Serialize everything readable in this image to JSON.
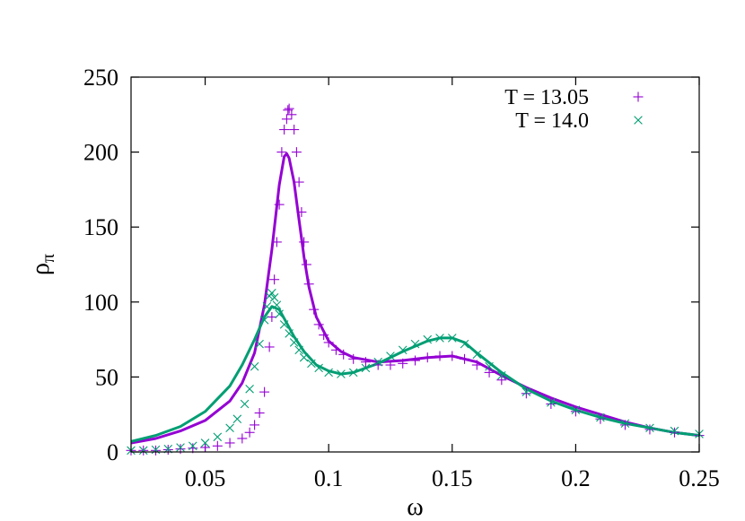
{
  "chart_data": {
    "type": "scatter",
    "xlabel": "ω",
    "ylabel": "ρ",
    "ylabel_sub": "π",
    "xlim": [
      0.02,
      0.25
    ],
    "ylim": [
      0,
      250
    ],
    "xticks": [
      "0.05",
      "0.1",
      "0.15",
      "0.2",
      "0.25"
    ],
    "xtick_values": [
      0.05,
      0.1,
      0.15,
      0.2,
      0.25
    ],
    "yticks": [
      "0",
      "50",
      "100",
      "150",
      "200",
      "250"
    ],
    "ytick_values": [
      0,
      50,
      100,
      150,
      200,
      250
    ],
    "grid": false,
    "legend_position": "top-right",
    "series": [
      {
        "name": "T = 13.05",
        "marker": "plus",
        "color": "#9400d3",
        "points": [
          [
            0.02,
            1
          ],
          [
            0.025,
            1
          ],
          [
            0.03,
            1
          ],
          [
            0.035,
            1.5
          ],
          [
            0.04,
            2
          ],
          [
            0.045,
            2.5
          ],
          [
            0.05,
            3
          ],
          [
            0.055,
            4
          ],
          [
            0.06,
            6
          ],
          [
            0.065,
            9
          ],
          [
            0.068,
            13
          ],
          [
            0.07,
            18
          ],
          [
            0.072,
            26
          ],
          [
            0.074,
            40
          ],
          [
            0.076,
            70
          ],
          [
            0.077,
            90
          ],
          [
            0.078,
            115
          ],
          [
            0.079,
            140
          ],
          [
            0.08,
            165
          ],
          [
            0.081,
            200
          ],
          [
            0.082,
            215
          ],
          [
            0.083,
            222
          ],
          [
            0.0835,
            228
          ],
          [
            0.084,
            229
          ],
          [
            0.085,
            225
          ],
          [
            0.086,
            215
          ],
          [
            0.087,
            200
          ],
          [
            0.088,
            180
          ],
          [
            0.089,
            160
          ],
          [
            0.09,
            140
          ],
          [
            0.091,
            125
          ],
          [
            0.092,
            112
          ],
          [
            0.094,
            95
          ],
          [
            0.096,
            85
          ],
          [
            0.098,
            78
          ],
          [
            0.1,
            73
          ],
          [
            0.103,
            68
          ],
          [
            0.106,
            65
          ],
          [
            0.11,
            62
          ],
          [
            0.115,
            60
          ],
          [
            0.12,
            58
          ],
          [
            0.125,
            58
          ],
          [
            0.13,
            59
          ],
          [
            0.135,
            61
          ],
          [
            0.14,
            63
          ],
          [
            0.145,
            64
          ],
          [
            0.15,
            64
          ],
          [
            0.155,
            62
          ],
          [
            0.16,
            58
          ],
          [
            0.165,
            53
          ],
          [
            0.17,
            48
          ],
          [
            0.18,
            39
          ],
          [
            0.19,
            32
          ],
          [
            0.2,
            27
          ],
          [
            0.21,
            22
          ],
          [
            0.22,
            18
          ],
          [
            0.23,
            15
          ],
          [
            0.24,
            13
          ],
          [
            0.25,
            11
          ]
        ],
        "fit": [
          [
            0.02,
            6
          ],
          [
            0.03,
            9
          ],
          [
            0.04,
            14
          ],
          [
            0.05,
            21
          ],
          [
            0.06,
            34
          ],
          [
            0.065,
            46
          ],
          [
            0.07,
            66
          ],
          [
            0.074,
            98
          ],
          [
            0.077,
            135
          ],
          [
            0.08,
            178
          ],
          [
            0.082,
            197
          ],
          [
            0.083,
            199
          ],
          [
            0.084,
            196
          ],
          [
            0.086,
            180
          ],
          [
            0.088,
            155
          ],
          [
            0.09,
            130
          ],
          [
            0.092,
            110
          ],
          [
            0.095,
            90
          ],
          [
            0.1,
            74
          ],
          [
            0.105,
            67
          ],
          [
            0.11,
            63
          ],
          [
            0.12,
            60
          ],
          [
            0.13,
            61
          ],
          [
            0.14,
            63
          ],
          [
            0.15,
            64
          ],
          [
            0.16,
            60
          ],
          [
            0.17,
            51
          ],
          [
            0.18,
            43
          ],
          [
            0.19,
            36
          ],
          [
            0.2,
            30
          ],
          [
            0.21,
            25
          ],
          [
            0.22,
            20
          ],
          [
            0.23,
            16
          ],
          [
            0.24,
            13
          ],
          [
            0.25,
            11
          ]
        ]
      },
      {
        "name": "T = 14.0",
        "marker": "cross",
        "color": "#009e73",
        "points": [
          [
            0.02,
            1
          ],
          [
            0.025,
            1
          ],
          [
            0.03,
            1.5
          ],
          [
            0.035,
            2
          ],
          [
            0.04,
            3
          ],
          [
            0.045,
            4
          ],
          [
            0.05,
            6
          ],
          [
            0.055,
            10
          ],
          [
            0.06,
            16
          ],
          [
            0.063,
            22
          ],
          [
            0.066,
            32
          ],
          [
            0.068,
            42
          ],
          [
            0.07,
            57
          ],
          [
            0.072,
            72
          ],
          [
            0.074,
            88
          ],
          [
            0.075,
            97
          ],
          [
            0.076,
            104
          ],
          [
            0.077,
            106
          ],
          [
            0.078,
            103
          ],
          [
            0.079,
            98
          ],
          [
            0.08,
            92
          ],
          [
            0.082,
            85
          ],
          [
            0.084,
            79
          ],
          [
            0.086,
            73
          ],
          [
            0.088,
            68
          ],
          [
            0.09,
            63
          ],
          [
            0.093,
            59
          ],
          [
            0.096,
            56
          ],
          [
            0.1,
            53
          ],
          [
            0.105,
            52
          ],
          [
            0.11,
            53
          ],
          [
            0.115,
            56
          ],
          [
            0.12,
            60
          ],
          [
            0.125,
            64
          ],
          [
            0.13,
            68
          ],
          [
            0.135,
            72
          ],
          [
            0.14,
            75
          ],
          [
            0.145,
            76
          ],
          [
            0.15,
            76
          ],
          [
            0.155,
            72
          ],
          [
            0.16,
            65
          ],
          [
            0.165,
            57
          ],
          [
            0.17,
            51
          ],
          [
            0.18,
            40
          ],
          [
            0.19,
            33
          ],
          [
            0.2,
            28
          ],
          [
            0.21,
            23
          ],
          [
            0.22,
            19
          ],
          [
            0.23,
            16
          ],
          [
            0.24,
            14
          ],
          [
            0.25,
            12
          ]
        ],
        "fit": [
          [
            0.02,
            7
          ],
          [
            0.03,
            11
          ],
          [
            0.04,
            17
          ],
          [
            0.05,
            27
          ],
          [
            0.06,
            44
          ],
          [
            0.065,
            58
          ],
          [
            0.07,
            75
          ],
          [
            0.074,
            90
          ],
          [
            0.077,
            97
          ],
          [
            0.08,
            95
          ],
          [
            0.083,
            86
          ],
          [
            0.086,
            77
          ],
          [
            0.09,
            67
          ],
          [
            0.095,
            58
          ],
          [
            0.1,
            54
          ],
          [
            0.105,
            52
          ],
          [
            0.11,
            53
          ],
          [
            0.12,
            59
          ],
          [
            0.13,
            67
          ],
          [
            0.14,
            74
          ],
          [
            0.145,
            76
          ],
          [
            0.15,
            76
          ],
          [
            0.155,
            73
          ],
          [
            0.16,
            66
          ],
          [
            0.17,
            53
          ],
          [
            0.18,
            42
          ],
          [
            0.19,
            34
          ],
          [
            0.2,
            28
          ],
          [
            0.21,
            23
          ],
          [
            0.22,
            19
          ],
          [
            0.23,
            16
          ],
          [
            0.24,
            13
          ],
          [
            0.25,
            11
          ]
        ]
      }
    ]
  }
}
